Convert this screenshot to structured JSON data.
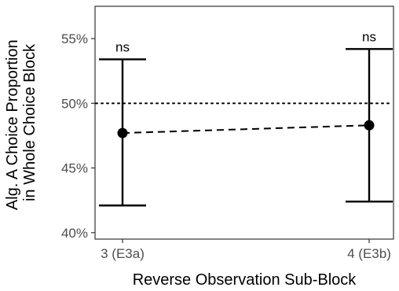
{
  "chart_data": {
    "type": "errorbar",
    "title": "",
    "xlabel": "Reverse Observation Sub-Block",
    "ylabel_lines": [
      "Alg. A Choice Proportion",
      "in Whole Choice Block"
    ],
    "categories": [
      "3 (E3a)",
      "4 (E3b)"
    ],
    "points": [
      {
        "category": "3 (E3a)",
        "mean": 47.7,
        "lower": 42.1,
        "upper": 53.4,
        "label": "ns"
      },
      {
        "category": "4 (E3b)",
        "mean": 48.3,
        "lower": 42.4,
        "upper": 54.2,
        "label": "ns"
      }
    ],
    "connector": "dashed",
    "reference_line": {
      "y": 50,
      "style": "dotted"
    },
    "ylim": [
      39.5,
      57.5
    ],
    "yticks": [
      40,
      45,
      50,
      55
    ],
    "ytick_labels": [
      "40%",
      "45%",
      "50%",
      "55%"
    ],
    "grid": false,
    "legend": "none",
    "colors": {
      "marks": "#000000",
      "axis_text": "#4d4d4d",
      "frame": "#333333"
    }
  }
}
